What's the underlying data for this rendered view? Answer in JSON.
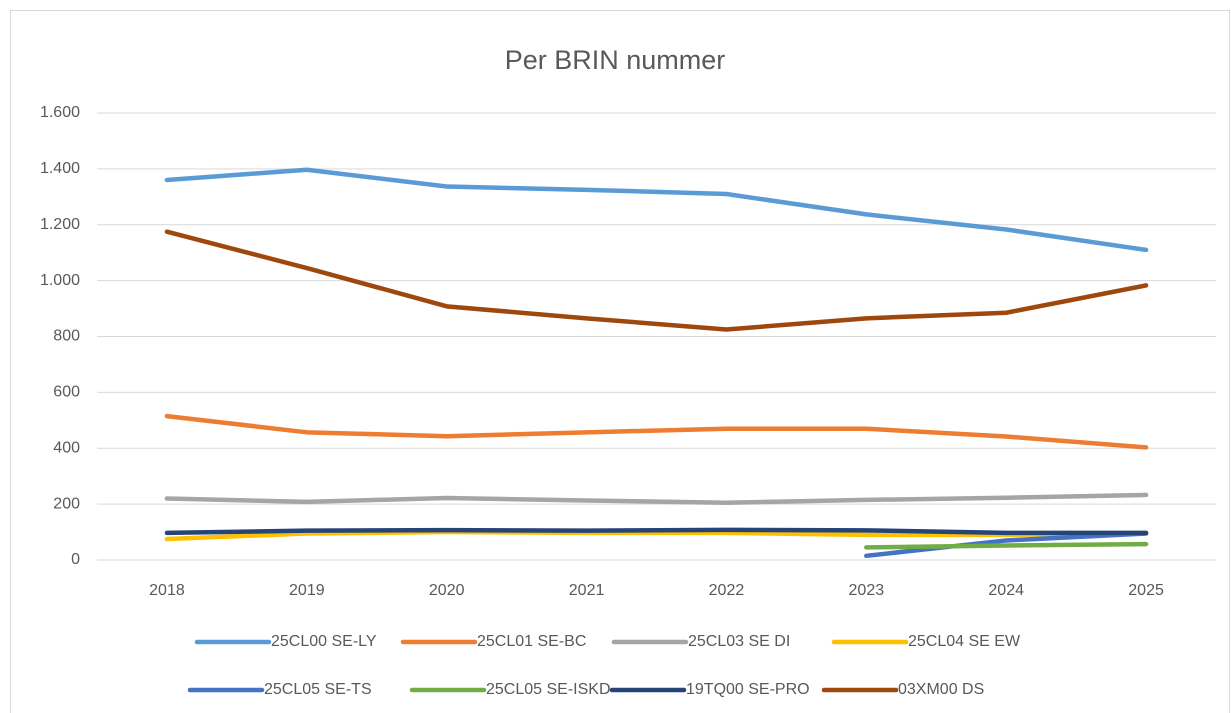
{
  "chart_data": {
    "type": "line",
    "title": "Per BRIN nummer",
    "categories": [
      "2018",
      "2019",
      "2020",
      "2021",
      "2022",
      "2023",
      "2024",
      "2025"
    ],
    "series": [
      {
        "name": "25CL00 SE-LY",
        "color": "#5b9bd5",
        "values": [
          1360,
          1397,
          1337,
          1325,
          1310,
          1237,
          1183,
          1110
        ]
      },
      {
        "name": "25CL01 SE-BC",
        "color": "#ed7d31",
        "values": [
          515,
          457,
          443,
          457,
          470,
          470,
          442,
          403
        ]
      },
      {
        "name": "25CL03 SE DI",
        "color": "#a5a5a5",
        "values": [
          220,
          208,
          222,
          213,
          205,
          215,
          223,
          233
        ]
      },
      {
        "name": "25CL04 SE EW",
        "color": "#ffc000",
        "values": [
          75,
          95,
          100,
          97,
          97,
          90,
          90,
          95
        ]
      },
      {
        "name": "25CL05 SE-TS",
        "color": "#4472c4",
        "values": [
          null,
          null,
          null,
          null,
          null,
          15,
          70,
          95
        ]
      },
      {
        "name": "25CL05 SE-ISKD",
        "color": "#70ad47",
        "values": [
          null,
          null,
          null,
          null,
          null,
          45,
          52,
          57
        ]
      },
      {
        "name": "19TQ00 SE-PRO",
        "color": "#264478",
        "values": [
          97,
          105,
          107,
          105,
          108,
          106,
          97,
          97
        ]
      },
      {
        "name": "03XM00 DS",
        "color": "#9e480e",
        "values": [
          1175,
          1045,
          908,
          865,
          825,
          865,
          885,
          983
        ]
      }
    ],
    "ylim": [
      0,
      1600
    ],
    "yticks": [
      0,
      200,
      400,
      600,
      800,
      {
        "value": 1000,
        "label": "1.000"
      },
      {
        "value": 1200,
        "label": "1.200"
      },
      {
        "value": 1400,
        "label": "1.400"
      },
      {
        "value": 1600,
        "label": "1.600"
      }
    ],
    "grid": true
  }
}
